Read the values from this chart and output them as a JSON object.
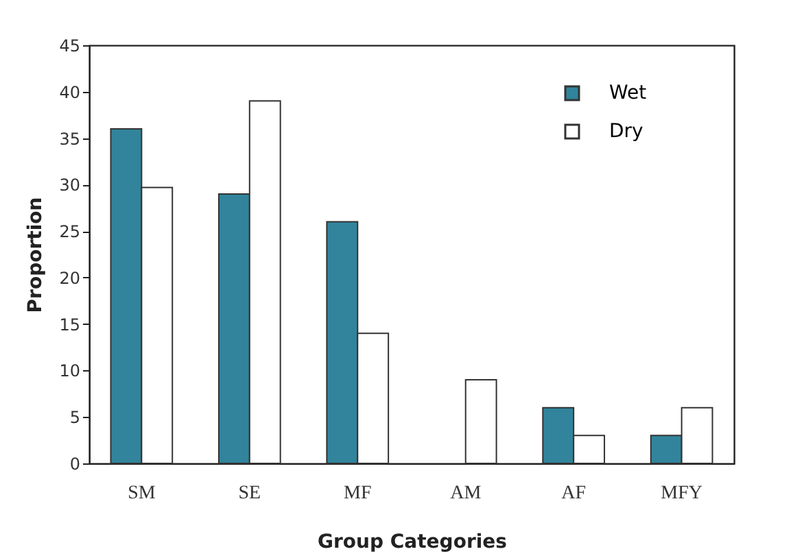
{
  "chart_data": {
    "type": "bar",
    "xlabel": "Group Categories",
    "ylabel": "Proportion",
    "categories": [
      "SM",
      "SE",
      "MF",
      "AM",
      "AF",
      "MFY"
    ],
    "series": [
      {
        "name": "Wet",
        "color": "#31849b",
        "values": [
          36,
          29,
          26,
          null,
          6,
          3
        ]
      },
      {
        "name": "Dry",
        "color": "#ffffff",
        "values": [
          29.7,
          39,
          14,
          9,
          3,
          6
        ]
      }
    ],
    "ylim": [
      0,
      45
    ],
    "yticks": [
      0,
      5,
      10,
      15,
      20,
      25,
      30,
      35,
      40,
      45
    ],
    "grid": false,
    "legend": "top right"
  }
}
